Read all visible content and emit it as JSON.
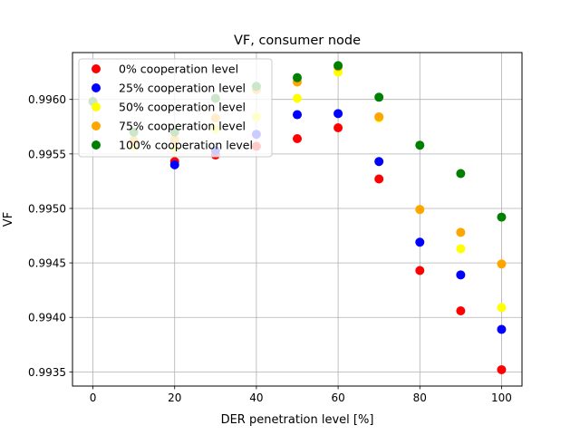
{
  "chart_data": {
    "type": "scatter",
    "title": "VF, consumer node",
    "xlabel": "DER penetration level [%]",
    "ylabel": "VF",
    "xlim": [
      -5,
      105
    ],
    "ylim": [
      0.99337,
      0.99643
    ],
    "xticks": [
      0,
      20,
      40,
      60,
      80,
      100
    ],
    "xtick_labels": [
      "0",
      "20",
      "40",
      "60",
      "80",
      "100"
    ],
    "yticks": [
      0.9935,
      0.994,
      0.9945,
      0.995,
      0.9955,
      0.996
    ],
    "ytick_labels": [
      "0.9935",
      "0.9940",
      "0.9945",
      "0.9950",
      "0.9955",
      "0.9960"
    ],
    "grid": true,
    "legend": "upper-left",
    "series": [
      {
        "name": "0% cooperation level",
        "color": "#ff0000",
        "x": [
          0,
          10,
          20,
          30,
          40,
          50,
          60,
          70,
          80,
          90,
          100
        ],
        "y": [
          0.99598,
          0.99559,
          0.99543,
          0.99549,
          0.99557,
          0.99564,
          0.99574,
          0.99527,
          0.99443,
          0.99406,
          0.99352
        ]
      },
      {
        "name": "25% cooperation level",
        "color": "#0000ff",
        "x": [
          0,
          10,
          20,
          30,
          40,
          50,
          60,
          70,
          80,
          90,
          100
        ],
        "y": [
          0.99598,
          0.99562,
          0.9954,
          0.99553,
          0.99568,
          0.99586,
          0.99587,
          0.99543,
          0.99469,
          0.99439,
          0.99389
        ]
      },
      {
        "name": "50% cooperation level",
        "color": "#ffff00",
        "x": [
          0,
          10,
          20,
          30,
          40,
          50,
          60,
          70,
          80,
          90,
          100
        ],
        "y": [
          0.99598,
          0.99557,
          0.99555,
          0.99573,
          0.99584,
          0.99601,
          0.99625,
          0.99583,
          0.99499,
          0.99463,
          0.99409
        ]
      },
      {
        "name": "75% cooperation level",
        "color": "#ffa500",
        "x": [
          0,
          10,
          20,
          30,
          40,
          50,
          60,
          70,
          80,
          90,
          100
        ],
        "y": [
          0.99598,
          0.99562,
          0.99563,
          0.99583,
          0.99609,
          0.99616,
          0.9963,
          0.99584,
          0.99499,
          0.99478,
          0.99449
        ]
      },
      {
        "name": "100% cooperation level",
        "color": "#008000",
        "x": [
          0,
          10,
          20,
          30,
          40,
          50,
          60,
          70,
          80,
          90,
          100
        ],
        "y": [
          0.99598,
          0.9957,
          0.9957,
          0.99601,
          0.99612,
          0.9962,
          0.99631,
          0.99602,
          0.99558,
          0.99532,
          0.99492
        ]
      }
    ]
  }
}
